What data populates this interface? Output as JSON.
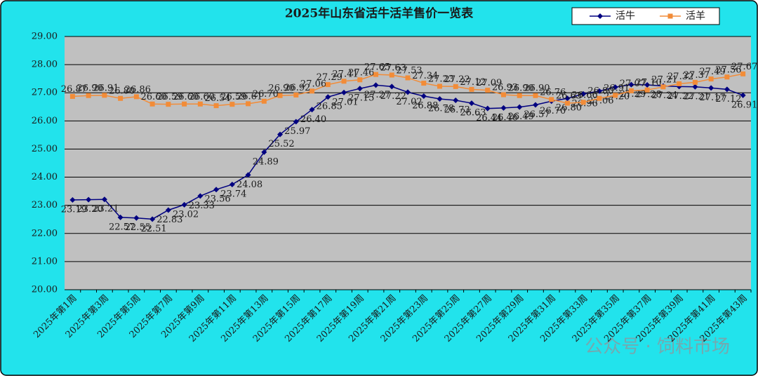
{
  "chart_data": {
    "type": "line",
    "title": "2025年山东省活牛活羊售价一览表",
    "categories": [
      "2025年第1周",
      null,
      "2025年第3周",
      null,
      "2025年第5周",
      null,
      "2025年第7周",
      null,
      "2025年第9周",
      null,
      "2025年第11周",
      null,
      "2025年第13周",
      null,
      "2025年第15周",
      null,
      "2025年第17周",
      null,
      "2025年第19周",
      null,
      "2025年第21周",
      null,
      "2025年第23周",
      null,
      "2025年第25周",
      null,
      "2025年第27周",
      null,
      "2025年第29周",
      null,
      "2025年第31周",
      null,
      "2025年第33周",
      null,
      "2025年第35周",
      null,
      "2025年第37周",
      null,
      "2025年第39周",
      null,
      "2025年第41周",
      null,
      "2025年第43周"
    ],
    "series": [
      {
        "name": "活牛",
        "color": "#000080",
        "marker": "diamond",
        "values": [
          23.19,
          23.2,
          23.21,
          22.57,
          22.55,
          22.51,
          22.83,
          23.02,
          23.33,
          23.56,
          23.74,
          24.08,
          24.89,
          25.52,
          25.97,
          26.4,
          26.85,
          27.01,
          27.15,
          27.27,
          27.22,
          27.02,
          26.88,
          26.78,
          26.73,
          26.63,
          26.44,
          26.46,
          26.49,
          26.57,
          26.7,
          26.8,
          26.96,
          27.06,
          27.2,
          27.29,
          27.28,
          27.24,
          27.22,
          27.21,
          27.17,
          27.12,
          26.91
        ],
        "value_labels": [
          "23.19",
          "23.20",
          "23.21",
          "22.57",
          "22.55",
          "22.51",
          "22.83",
          "23.02",
          "23.33",
          "23.56",
          "23.74",
          "24.08",
          "24.89",
          "25.52",
          "25.97",
          "26.40",
          "26.85",
          "27.01",
          "27.15",
          "27.27",
          "27.22",
          "27.02",
          "26.88",
          "26.78",
          "26.73",
          "26.63",
          "26.44",
          "26.46",
          "26.49",
          "26.57",
          "26.70",
          "26.80",
          "26.96",
          "27.06",
          "27.20",
          "27.29",
          "27.28",
          "27.24",
          "27.22",
          "27.21",
          "27.17",
          "27.12",
          "26.91"
        ]
      },
      {
        "name": "活羊",
        "color": "#f28c38",
        "marker": "square",
        "values": [
          26.87,
          26.9,
          26.91,
          26.8,
          26.86,
          26.6,
          26.59,
          26.6,
          26.6,
          26.54,
          26.59,
          26.61,
          26.7,
          26.9,
          26.92,
          27.06,
          27.29,
          27.41,
          27.46,
          27.65,
          27.63,
          27.53,
          27.34,
          27.23,
          27.22,
          27.12,
          27.09,
          26.93,
          26.9,
          26.9,
          26.76,
          26.63,
          26.66,
          26.8,
          26.91,
          27.07,
          27.1,
          27.21,
          27.32,
          27.37,
          27.49,
          27.56,
          27.67
        ],
        "value_labels": [
          "26.87",
          "26.90",
          "26.91",
          "26.80",
          "26.86",
          "26.60",
          "26.59",
          "26.60",
          "26.60",
          "26.54",
          "26.59",
          "26.61",
          "26.70",
          "26.90",
          "26.92",
          "27.06",
          "27.29",
          "27.41",
          "27.46",
          "27.65",
          "27.63",
          "27.53",
          "27.34",
          "27.23",
          "27.22",
          "27.12",
          "27.09",
          "26.93",
          "26.90",
          "26.90",
          "26.76",
          "26.63",
          "26.66",
          "26.80",
          "26.91",
          "27.07",
          "27.10",
          "27.21",
          "27.32",
          "27.37",
          "27.49",
          "27.56",
          "27.67"
        ]
      }
    ],
    "ylim": [
      20,
      29
    ],
    "yticks": [
      {
        "value": 20,
        "label": "20.00"
      },
      {
        "value": 21,
        "label": "21.00"
      },
      {
        "value": 22,
        "label": "22.00"
      },
      {
        "value": 23,
        "label": "23.00"
      },
      {
        "value": 24,
        "label": "24.00"
      },
      {
        "value": 25,
        "label": "25.00"
      },
      {
        "value": 26,
        "label": "26.00"
      },
      {
        "value": 27,
        "label": "27.00"
      },
      {
        "value": 28,
        "label": "28.00"
      },
      {
        "value": 29,
        "label": "29.00"
      }
    ],
    "grid": true,
    "legend": "top-right",
    "watermark": "公众号 · 饲料市场"
  }
}
